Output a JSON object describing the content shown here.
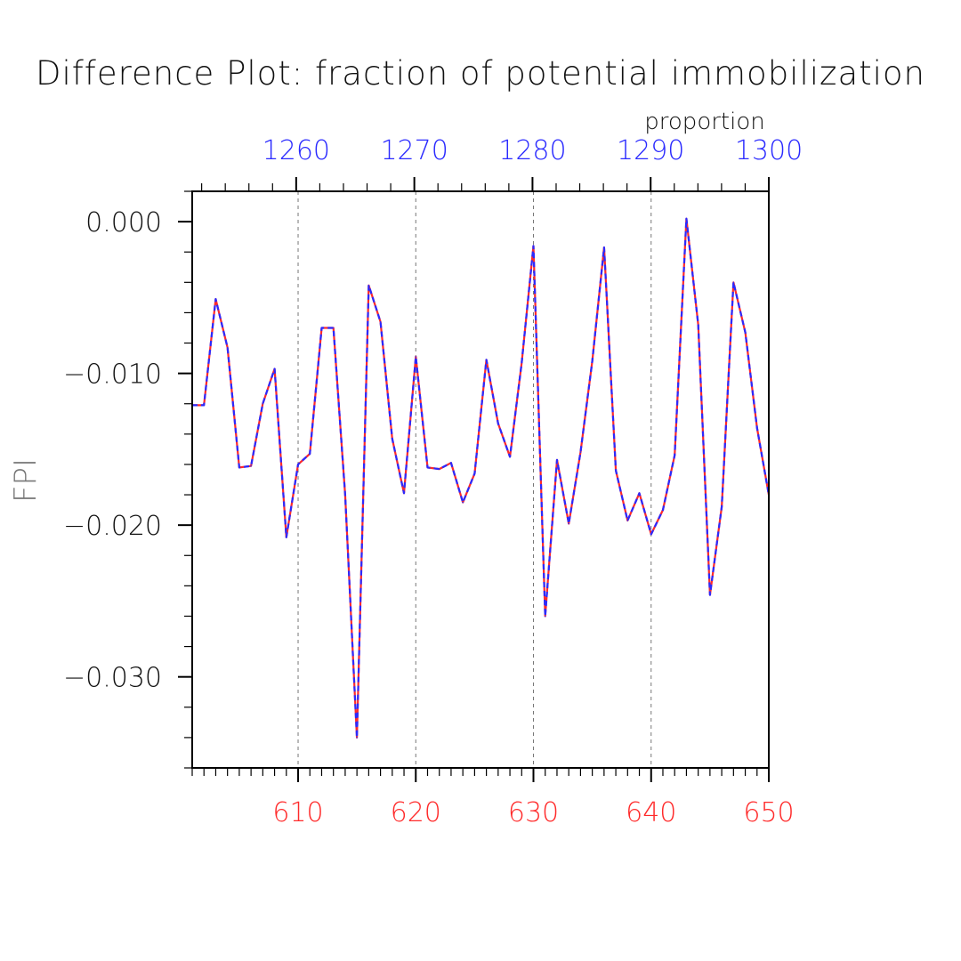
{
  "colors": {
    "bottom_axis": "#ff2a2a",
    "top_axis": "#2a2aff",
    "series_primary": "#ff2a2a",
    "series_overlay": "#2a2aff",
    "grid": "#777777",
    "frame": "#000000"
  },
  "chart_data": {
    "type": "line",
    "title": "Difference Plot: fraction of potential immobilization",
    "ylabel": "FPI",
    "top_axis_label": "proportion",
    "xlim": [
      601,
      650
    ],
    "ylim": [
      -0.036,
      0.002
    ],
    "top_xlim": [
      1251.2,
      1300
    ],
    "x_ticks": [
      610,
      620,
      630,
      640,
      650
    ],
    "x_tick_labels": [
      "610",
      "620",
      "630",
      "640",
      "650"
    ],
    "top_ticks": [
      1260,
      1270,
      1280,
      1290,
      1300
    ],
    "top_tick_labels": [
      "1260",
      "1270",
      "1280",
      "1290",
      "1300"
    ],
    "y_ticks": [
      0.0,
      -0.01,
      -0.02,
      -0.03
    ],
    "y_tick_labels": [
      "0.000",
      "−0.010",
      "−0.020",
      "−0.030"
    ],
    "grid": "vertical dashed at major bottom ticks",
    "series": [
      {
        "name": "FPI",
        "style": "red solid with blue dashed overlay",
        "x": [
          601,
          602,
          603,
          604,
          605,
          606,
          607,
          608,
          609,
          610,
          611,
          612,
          613,
          614,
          615,
          616,
          617,
          618,
          619,
          620,
          621,
          622,
          623,
          624,
          625,
          626,
          627,
          628,
          629,
          630,
          631,
          632,
          633,
          634,
          635,
          636,
          637,
          638,
          639,
          640,
          641,
          642,
          643,
          644,
          645,
          646,
          647,
          648,
          649,
          650
        ],
        "values": [
          -0.0121,
          -0.0121,
          -0.0051,
          -0.0083,
          -0.0162,
          -0.0161,
          -0.012,
          -0.0097,
          -0.0208,
          -0.016,
          -0.0153,
          -0.007,
          -0.007,
          -0.018,
          -0.034,
          -0.0042,
          -0.0066,
          -0.0143,
          -0.0179,
          -0.0089,
          -0.0162,
          -0.0163,
          -0.0159,
          -0.0185,
          -0.0166,
          -0.0091,
          -0.0133,
          -0.0155,
          -0.0093,
          -0.0016,
          -0.026,
          -0.0157,
          -0.0199,
          -0.0152,
          -0.0092,
          -0.0017,
          -0.0164,
          -0.0197,
          -0.0179,
          -0.0206,
          -0.019,
          -0.0154,
          0.0002,
          -0.0068,
          -0.0246,
          -0.0188,
          -0.004,
          -0.0073,
          -0.0136,
          -0.018
        ]
      }
    ]
  }
}
